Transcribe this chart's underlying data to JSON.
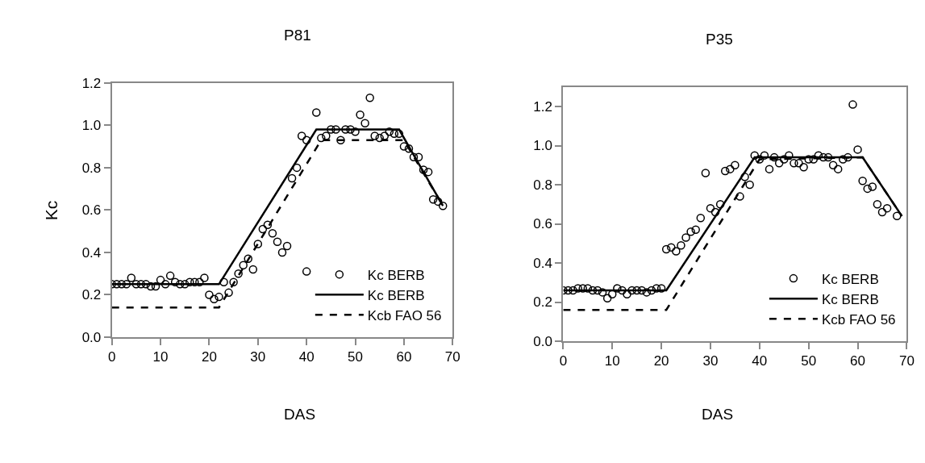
{
  "chart_data": [
    {
      "type": "scatter",
      "title": "P81",
      "xlabel": "DAS",
      "ylabel": "Kc",
      "xlim": [
        0,
        70
      ],
      "ylim": [
        0,
        1.2
      ],
      "xticks": [
        0,
        10,
        20,
        30,
        40,
        50,
        60,
        70
      ],
      "yticks": [
        {
          "value": 0,
          "label": "0.0"
        },
        {
          "value": 0.2,
          "label": "0.2"
        },
        {
          "value": 0.4,
          "label": "0.4"
        },
        {
          "value": 0.6,
          "label": "0.6"
        },
        {
          "value": 0.8,
          "label": "0.8"
        },
        {
          "value": 1.0,
          "label": "1.0"
        },
        {
          "value": 1.2,
          "label": "1.2"
        }
      ],
      "legend": "bottom right",
      "series": [
        {
          "name": "Kc BERB",
          "marker": "circle",
          "color": "#000000",
          "x": [
            0,
            1,
            2,
            3,
            4,
            5,
            6,
            7,
            8,
            9,
            10,
            11,
            12,
            13,
            14,
            15,
            16,
            17,
            18,
            19,
            20,
            21,
            22,
            23,
            24,
            25,
            26,
            27,
            28,
            29,
            30,
            31,
            32,
            33,
            34,
            35,
            36,
            37,
            38,
            39,
            40,
            40,
            42,
            43,
            44,
            45,
            46,
            47,
            48,
            49,
            50,
            51,
            52,
            53,
            54,
            55,
            56,
            57,
            58,
            59,
            60,
            61,
            62,
            63,
            64,
            65,
            66,
            67,
            68
          ],
          "values": [
            0.25,
            0.25,
            0.25,
            0.25,
            0.28,
            0.25,
            0.25,
            0.25,
            0.24,
            0.24,
            0.27,
            0.25,
            0.29,
            0.26,
            0.25,
            0.25,
            0.26,
            0.26,
            0.26,
            0.28,
            0.2,
            0.18,
            0.19,
            0.26,
            0.21,
            0.26,
            0.3,
            0.34,
            0.37,
            0.32,
            0.44,
            0.51,
            0.53,
            0.49,
            0.45,
            0.4,
            0.43,
            0.75,
            0.8,
            0.95,
            0.93,
            0.31,
            1.06,
            0.94,
            0.95,
            0.98,
            0.98,
            0.93,
            0.98,
            0.98,
            0.97,
            1.05,
            1.01,
            1.13,
            0.95,
            0.94,
            0.95,
            0.97,
            0.96,
            0.96,
            0.9,
            0.89,
            0.85,
            0.85,
            0.79,
            0.78,
            0.65,
            0.64,
            0.62
          ]
        },
        {
          "name": "Kc BERB",
          "type": "line",
          "line_style": "solid",
          "color": "#000000",
          "x": [
            0,
            22,
            42,
            59,
            68
          ],
          "values": [
            0.25,
            0.25,
            0.98,
            0.98,
            0.62
          ]
        },
        {
          "name": "Kcb FAO 56",
          "type": "line",
          "line_style": "dashed",
          "color": "#000000",
          "x": [
            0,
            22,
            43,
            60,
            68
          ],
          "values": [
            0.14,
            0.14,
            0.93,
            0.93,
            0.62
          ]
        }
      ]
    },
    {
      "type": "scatter",
      "title": "P35",
      "xlabel": "DAS",
      "xlim": [
        0,
        70
      ],
      "ylim": [
        0,
        1.3
      ],
      "xticks": [
        0,
        10,
        20,
        30,
        40,
        50,
        60,
        70
      ],
      "yticks": [
        {
          "value": 0,
          "label": "0.0"
        },
        {
          "value": 0.2,
          "label": "0.2"
        },
        {
          "value": 0.4,
          "label": "0.4"
        },
        {
          "value": 0.6,
          "label": "0.6"
        },
        {
          "value": 0.8,
          "label": "0.8"
        },
        {
          "value": 1.0,
          "label": "1.0"
        },
        {
          "value": 1.2,
          "label": "1.2"
        }
      ],
      "legend": "bottom right",
      "series": [
        {
          "name": "Kc BERB",
          "marker": "circle",
          "color": "#000000",
          "x": [
            0,
            1,
            2,
            3,
            4,
            5,
            6,
            7,
            8,
            9,
            10,
            11,
            12,
            13,
            14,
            15,
            16,
            17,
            18,
            19,
            20,
            21,
            22,
            23,
            24,
            25,
            26,
            27,
            28,
            29,
            30,
            31,
            32,
            33,
            34,
            35,
            36,
            37,
            38,
            39,
            40,
            41,
            42,
            43,
            44,
            45,
            46,
            47,
            48,
            49,
            50,
            51,
            52,
            53,
            54,
            55,
            56,
            57,
            58,
            59,
            60,
            61,
            62,
            63,
            64,
            65,
            66,
            68
          ],
          "values": [
            0.26,
            0.26,
            0.26,
            0.27,
            0.27,
            0.27,
            0.26,
            0.26,
            0.25,
            0.22,
            0.24,
            0.27,
            0.26,
            0.24,
            0.26,
            0.26,
            0.26,
            0.25,
            0.26,
            0.27,
            0.27,
            0.47,
            0.48,
            0.46,
            0.49,
            0.53,
            0.56,
            0.57,
            0.63,
            0.86,
            0.68,
            0.66,
            0.7,
            0.87,
            0.88,
            0.9,
            0.74,
            0.84,
            0.8,
            0.95,
            0.93,
            0.95,
            0.88,
            0.94,
            0.91,
            0.93,
            0.95,
            0.91,
            0.91,
            0.89,
            0.93,
            0.93,
            0.95,
            0.94,
            0.94,
            0.9,
            0.88,
            0.93,
            0.94,
            1.21,
            0.98,
            0.82,
            0.78,
            0.79,
            0.7,
            0.66,
            0.68,
            0.64
          ]
        },
        {
          "name": "Kc BERB",
          "type": "line",
          "line_style": "solid",
          "color": "#000000",
          "x": [
            0,
            21,
            39,
            61,
            69
          ],
          "values": [
            0.26,
            0.26,
            0.94,
            0.94,
            0.64
          ]
        },
        {
          "name": "Kcb FAO 56",
          "type": "line",
          "line_style": "dashed",
          "color": "#000000",
          "x": [
            0,
            21,
            40,
            61,
            69
          ],
          "values": [
            0.16,
            0.16,
            0.93,
            0.94,
            0.64
          ]
        }
      ]
    }
  ]
}
